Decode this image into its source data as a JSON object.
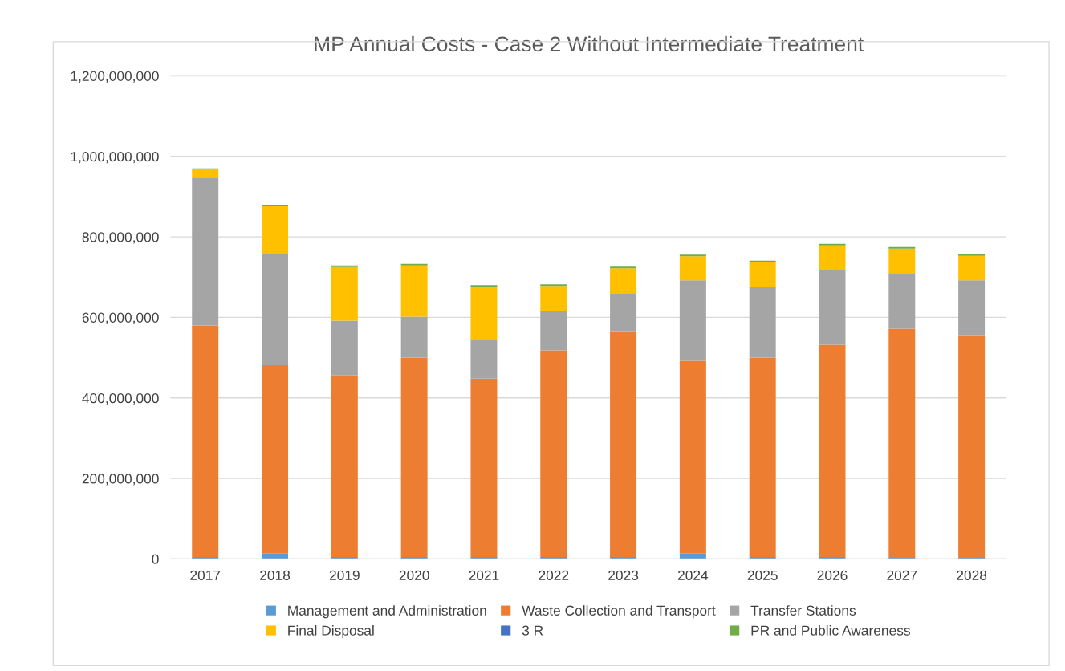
{
  "chart_data": {
    "type": "bar",
    "title": "MP Annual Costs - Case 2 Without Intermediate Treatment",
    "stacked": true,
    "grid": "y",
    "legend": "bottom",
    "categories": [
      "2017",
      "2018",
      "2019",
      "2020",
      "2021",
      "2022",
      "2023",
      "2024",
      "2025",
      "2026",
      "2027",
      "2028"
    ],
    "ylim": [
      0,
      1200000000
    ],
    "yticks": [
      {
        "value": 0,
        "label": "0"
      },
      {
        "value": 200000000,
        "label": "200,000,000"
      },
      {
        "value": 400000000,
        "label": "400,000,000"
      },
      {
        "value": 600000000,
        "label": "600,000,000"
      },
      {
        "value": 800000000,
        "label": "800,000,000"
      },
      {
        "value": 1000000000,
        "label": "1,000,000,000"
      },
      {
        "value": 1200000000,
        "label": "1,200,000,000"
      }
    ],
    "series": [
      {
        "name": "Management and Administration",
        "color": "#5b9bd5",
        "values": [
          5000000,
          13000000,
          5000000,
          5000000,
          5000000,
          5000000,
          5000000,
          13000000,
          5000000,
          5000000,
          3000000,
          3000000
        ]
      },
      {
        "name": "Waste Collection and Transport",
        "color": "#ed7d31",
        "values": [
          575000000,
          468000000,
          451000000,
          495000000,
          443000000,
          513000000,
          559000000,
          479000000,
          495000000,
          527000000,
          569000000,
          553000000
        ]
      },
      {
        "name": "Transfer Stations",
        "color": "#a5a5a5",
        "values": [
          367000000,
          279000000,
          136000000,
          102000000,
          96000000,
          98000000,
          96000000,
          200000000,
          176000000,
          186000000,
          138000000,
          136000000
        ]
      },
      {
        "name": "Final Disposal",
        "color": "#ffc000",
        "values": [
          20000000,
          116000000,
          133000000,
          127000000,
          132000000,
          62000000,
          62000000,
          60000000,
          61000000,
          61000000,
          61000000,
          61000000
        ]
      },
      {
        "name": "3 R",
        "color": "#4472c4",
        "values": [
          null,
          null,
          null,
          null,
          null,
          null,
          null,
          null,
          null,
          null,
          null,
          null
        ]
      },
      {
        "name": "PR and Public Awareness",
        "color": "#70ad47",
        "values": [
          3000000,
          4000000,
          4000000,
          4000000,
          4000000,
          4000000,
          4000000,
          4000000,
          4000000,
          4000000,
          4000000,
          4000000
        ]
      }
    ]
  }
}
